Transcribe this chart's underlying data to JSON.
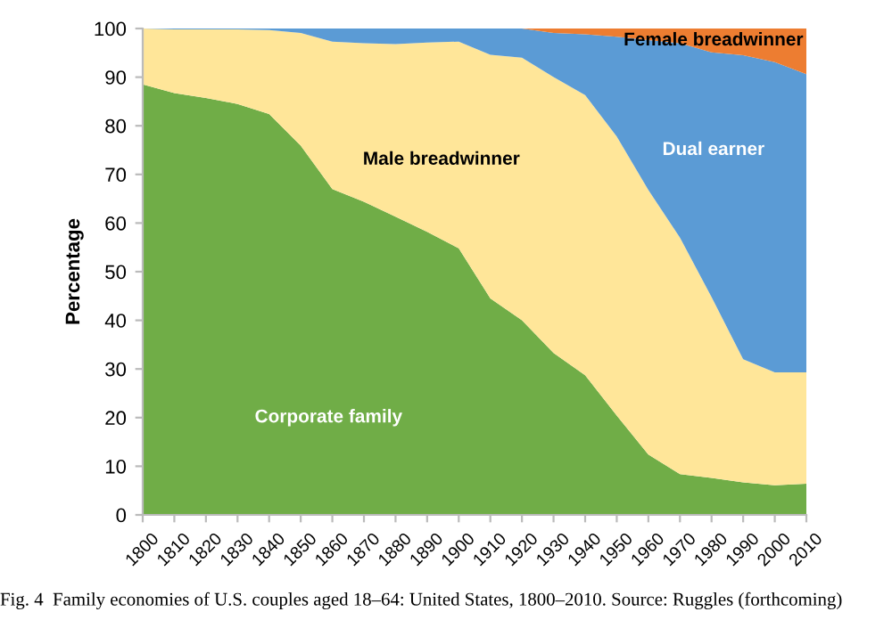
{
  "chart_data": {
    "type": "area",
    "stacked": true,
    "ylabel": "Percentage",
    "x": [
      1800,
      1810,
      1820,
      1830,
      1840,
      1850,
      1860,
      1870,
      1880,
      1890,
      1900,
      1910,
      1920,
      1930,
      1940,
      1950,
      1960,
      1970,
      1980,
      1990,
      2000,
      2010
    ],
    "series": [
      {
        "name": "Corporate family",
        "color": "#70ad47",
        "values": [
          88.5,
          86.7,
          85.7,
          84.5,
          82.4,
          75.9,
          67,
          64.4,
          61.3,
          58.2,
          54.8,
          44.5,
          40,
          33.3,
          28.7,
          20.4,
          12.4,
          8.4,
          7.6,
          6.7,
          6.1,
          6.4
        ]
      },
      {
        "name": "Male breadwinner",
        "color": "#ffe699",
        "values": [
          11.5,
          13.1,
          14.1,
          15.3,
          17.3,
          23.2,
          30.3,
          32.6,
          35.5,
          38.9,
          42.5,
          50.1,
          54,
          56.7,
          57.6,
          57.4,
          54.4,
          48.6,
          37.2,
          25.3,
          23.2,
          22.9
        ]
      },
      {
        "name": "Dual earner",
        "color": "#5b9bd5",
        "values": [
          0,
          0.2,
          0.2,
          0.2,
          0.3,
          0.9,
          2.7,
          3,
          3.2,
          2.9,
          2.7,
          5.4,
          6,
          9.1,
          12.5,
          20.5,
          30.8,
          40,
          50.3,
          62.5,
          63.8,
          61.3
        ]
      },
      {
        "name": "Female breadwinner",
        "color": "#ed7d31",
        "values": [
          0,
          0,
          0,
          0,
          0,
          0,
          0,
          0,
          0,
          0,
          0,
          0,
          0,
          0.9,
          1.2,
          1.7,
          2.4,
          3,
          4.9,
          5.5,
          6.9,
          9.4
        ]
      }
    ],
    "xlim": [
      1800,
      2010
    ],
    "xticks": [
      1800,
      1810,
      1820,
      1830,
      1840,
      1850,
      1860,
      1870,
      1880,
      1890,
      1900,
      1910,
      1920,
      1930,
      1940,
      1950,
      1960,
      1970,
      1980,
      1990,
      2000,
      2010
    ],
    "ylim": [
      0,
      100
    ],
    "yticks": [
      0,
      10,
      20,
      30,
      40,
      50,
      60,
      70,
      80,
      90,
      100
    ],
    "legend": false,
    "annotations": [
      "Fig. 4  Family economies of U.S. couples aged 18–64: United States, 1800–2010. Source: Ruggles (forthcoming)"
    ]
  }
}
